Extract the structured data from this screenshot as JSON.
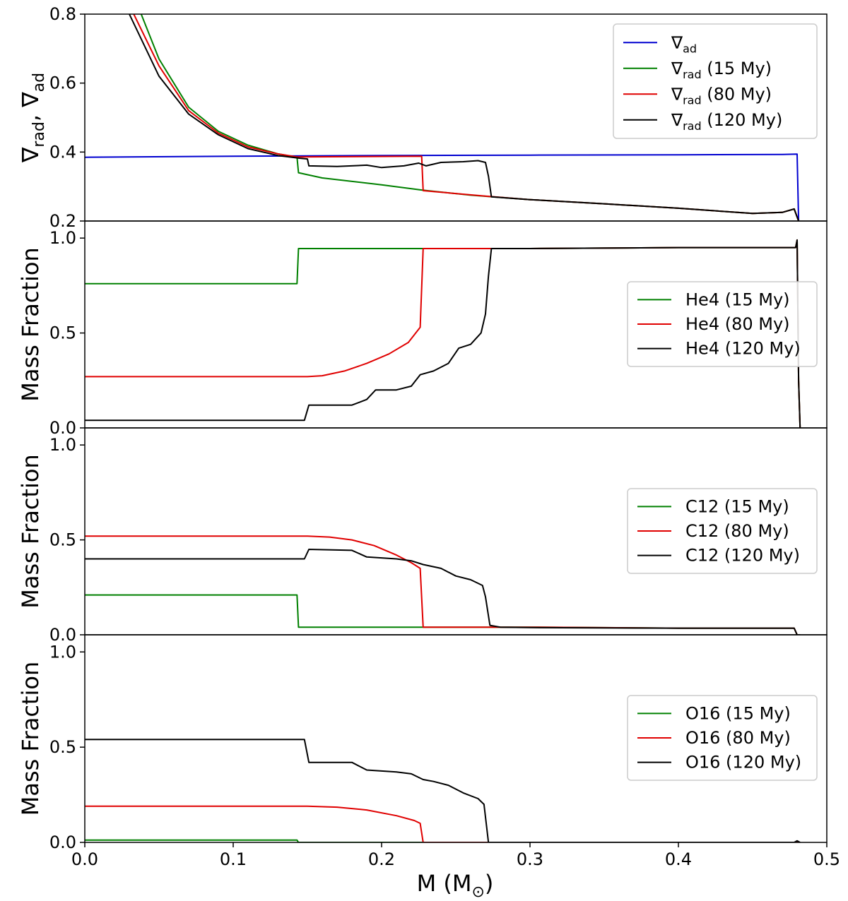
{
  "figure": {
    "xlabel": "M (M",
    "xlabel_sub": "⊙",
    "xlabel_close": ")"
  },
  "colors": {
    "green": "#008000",
    "red": "#e00000",
    "black": "#000000",
    "blue": "#0000d0"
  },
  "chart_data": [
    {
      "type": "line",
      "id": "gradients",
      "ylabel_parts": [
        "∇",
        "rad",
        ", ∇",
        "ad"
      ],
      "xlim": [
        0.0,
        0.5
      ],
      "ylim": [
        0.2,
        0.8
      ],
      "yticks": [
        "0.2",
        "0.4",
        "0.6",
        "0.8"
      ],
      "ytick_values": [
        0.2,
        0.4,
        0.6,
        0.8
      ],
      "legend_position": "top-right",
      "series": [
        {
          "name": "∇ad",
          "label_main": "∇",
          "label_sub": "ad",
          "label_rest": "",
          "color": "blue",
          "points": [
            [
              0,
              0.385
            ],
            [
              0.1,
              0.388
            ],
            [
              0.2,
              0.39
            ],
            [
              0.3,
              0.391
            ],
            [
              0.4,
              0.392
            ],
            [
              0.47,
              0.393
            ],
            [
              0.48,
              0.394
            ],
            [
              0.481,
              0.2
            ]
          ]
        },
        {
          "name": "∇rad (15 My)",
          "label_main": "∇",
          "label_sub": "rad",
          "label_rest": " (15 My)",
          "color": "green",
          "points": [
            [
              0.038,
              0.8
            ],
            [
              0.05,
              0.67
            ],
            [
              0.07,
              0.53
            ],
            [
              0.09,
              0.46
            ],
            [
              0.11,
              0.42
            ],
            [
              0.13,
              0.395
            ],
            [
              0.143,
              0.385
            ],
            [
              0.144,
              0.34
            ],
            [
              0.16,
              0.325
            ],
            [
              0.2,
              0.305
            ],
            [
              0.227,
              0.29
            ],
            [
              0.26,
              0.275
            ],
            [
              0.3,
              0.262
            ],
            [
              0.35,
              0.25
            ],
            [
              0.4,
              0.237
            ],
            [
              0.45,
              0.222
            ],
            [
              0.47,
              0.225
            ],
            [
              0.478,
              0.235
            ],
            [
              0.481,
              0.2
            ]
          ]
        },
        {
          "name": "∇rad (80 My)",
          "label_main": "∇",
          "label_sub": "rad",
          "label_rest": " (80 My)",
          "color": "red",
          "points": [
            [
              0.033,
              0.8
            ],
            [
              0.05,
              0.65
            ],
            [
              0.07,
              0.52
            ],
            [
              0.09,
              0.455
            ],
            [
              0.11,
              0.415
            ],
            [
              0.13,
              0.395
            ],
            [
              0.143,
              0.386
            ],
            [
              0.227,
              0.388
            ],
            [
              0.228,
              0.288
            ],
            [
              0.27,
              0.272
            ],
            [
              0.3,
              0.262
            ],
            [
              0.35,
              0.25
            ],
            [
              0.4,
              0.237
            ],
            [
              0.45,
              0.222
            ],
            [
              0.47,
              0.225
            ],
            [
              0.478,
              0.235
            ],
            [
              0.481,
              0.2
            ]
          ]
        },
        {
          "name": "∇rad (120 My)",
          "label_main": "∇",
          "label_sub": "rad",
          "label_rest": " (120 My)",
          "color": "black",
          "points": [
            [
              0.03,
              0.8
            ],
            [
              0.05,
              0.62
            ],
            [
              0.07,
              0.51
            ],
            [
              0.09,
              0.45
            ],
            [
              0.11,
              0.41
            ],
            [
              0.13,
              0.39
            ],
            [
              0.145,
              0.382
            ],
            [
              0.15,
              0.38
            ],
            [
              0.151,
              0.36
            ],
            [
              0.17,
              0.358
            ],
            [
              0.19,
              0.362
            ],
            [
              0.2,
              0.355
            ],
            [
              0.215,
              0.36
            ],
            [
              0.225,
              0.368
            ],
            [
              0.23,
              0.36
            ],
            [
              0.24,
              0.37
            ],
            [
              0.255,
              0.372
            ],
            [
              0.265,
              0.375
            ],
            [
              0.27,
              0.37
            ],
            [
              0.272,
              0.33
            ],
            [
              0.274,
              0.27
            ],
            [
              0.3,
              0.262
            ],
            [
              0.35,
              0.25
            ],
            [
              0.4,
              0.237
            ],
            [
              0.45,
              0.222
            ],
            [
              0.47,
              0.225
            ],
            [
              0.478,
              0.235
            ],
            [
              0.481,
              0.2
            ]
          ]
        }
      ]
    },
    {
      "type": "line",
      "id": "he4",
      "ylabel": "Mass Fraction",
      "xlim": [
        0.0,
        0.5
      ],
      "ylim": [
        0.0,
        1.09
      ],
      "yticks": [
        "0.0",
        "0.5",
        "1.0"
      ],
      "ytick_values": [
        0.0,
        0.5,
        1.0
      ],
      "legend_position": "center-right",
      "series": [
        {
          "name": "He4 (15 My)",
          "color": "green",
          "points": [
            [
              0,
              0.76
            ],
            [
              0.143,
              0.76
            ],
            [
              0.144,
              0.945
            ],
            [
              0.2,
              0.945
            ],
            [
              0.3,
              0.945
            ],
            [
              0.4,
              0.95
            ],
            [
              0.47,
              0.95
            ],
            [
              0.479,
              0.95
            ],
            [
              0.48,
              0.99
            ],
            [
              0.481,
              0.25
            ],
            [
              0.482,
              0.0
            ]
          ]
        },
        {
          "name": "He4 (80 My)",
          "color": "red",
          "points": [
            [
              0,
              0.27
            ],
            [
              0.15,
              0.27
            ],
            [
              0.16,
              0.275
            ],
            [
              0.175,
              0.3
            ],
            [
              0.19,
              0.34
            ],
            [
              0.205,
              0.39
            ],
            [
              0.218,
              0.45
            ],
            [
              0.226,
              0.53
            ],
            [
              0.228,
              0.945
            ],
            [
              0.3,
              0.945
            ],
            [
              0.4,
              0.95
            ],
            [
              0.47,
              0.95
            ],
            [
              0.479,
              0.95
            ],
            [
              0.48,
              0.99
            ],
            [
              0.481,
              0.25
            ],
            [
              0.482,
              0.0
            ]
          ]
        },
        {
          "name": "He4 (120 My)",
          "color": "black",
          "points": [
            [
              0,
              0.04
            ],
            [
              0.148,
              0.04
            ],
            [
              0.151,
              0.12
            ],
            [
              0.18,
              0.12
            ],
            [
              0.19,
              0.15
            ],
            [
              0.196,
              0.2
            ],
            [
              0.21,
              0.2
            ],
            [
              0.22,
              0.22
            ],
            [
              0.226,
              0.28
            ],
            [
              0.235,
              0.3
            ],
            [
              0.245,
              0.34
            ],
            [
              0.252,
              0.42
            ],
            [
              0.26,
              0.44
            ],
            [
              0.267,
              0.5
            ],
            [
              0.27,
              0.6
            ],
            [
              0.272,
              0.8
            ],
            [
              0.274,
              0.945
            ],
            [
              0.3,
              0.945
            ],
            [
              0.4,
              0.95
            ],
            [
              0.47,
              0.95
            ],
            [
              0.479,
              0.95
            ],
            [
              0.48,
              0.99
            ],
            [
              0.481,
              0.25
            ],
            [
              0.482,
              0.0
            ]
          ]
        }
      ]
    },
    {
      "type": "line",
      "id": "c12",
      "ylabel": "Mass Fraction",
      "xlim": [
        0.0,
        0.5
      ],
      "ylim": [
        0.0,
        1.09
      ],
      "yticks": [
        "0.0",
        "0.5",
        "1.0"
      ],
      "ytick_values": [
        0.0,
        0.5,
        1.0
      ],
      "legend_position": "center-right",
      "series": [
        {
          "name": "C12 (15 My)",
          "color": "green",
          "points": [
            [
              0,
              0.21
            ],
            [
              0.143,
              0.21
            ],
            [
              0.144,
              0.04
            ],
            [
              0.2,
              0.04
            ],
            [
              0.3,
              0.04
            ],
            [
              0.4,
              0.035
            ],
            [
              0.478,
              0.035
            ],
            [
              0.48,
              0.0
            ],
            [
              0.482,
              0.0
            ]
          ]
        },
        {
          "name": "C12 (80 My)",
          "color": "red",
          "points": [
            [
              0,
              0.52
            ],
            [
              0.15,
              0.52
            ],
            [
              0.165,
              0.515
            ],
            [
              0.18,
              0.5
            ],
            [
              0.195,
              0.47
            ],
            [
              0.21,
              0.42
            ],
            [
              0.22,
              0.38
            ],
            [
              0.226,
              0.35
            ],
            [
              0.228,
              0.04
            ],
            [
              0.3,
              0.04
            ],
            [
              0.4,
              0.035
            ],
            [
              0.478,
              0.035
            ],
            [
              0.48,
              0.0
            ],
            [
              0.482,
              0.0
            ]
          ]
        },
        {
          "name": "C12 (120 My)",
          "color": "black",
          "points": [
            [
              0,
              0.4
            ],
            [
              0.148,
              0.4
            ],
            [
              0.151,
              0.45
            ],
            [
              0.18,
              0.445
            ],
            [
              0.19,
              0.41
            ],
            [
              0.21,
              0.4
            ],
            [
              0.22,
              0.39
            ],
            [
              0.228,
              0.37
            ],
            [
              0.24,
              0.35
            ],
            [
              0.25,
              0.31
            ],
            [
              0.26,
              0.29
            ],
            [
              0.268,
              0.26
            ],
            [
              0.27,
              0.2
            ],
            [
              0.273,
              0.05
            ],
            [
              0.28,
              0.04
            ],
            [
              0.3,
              0.038
            ],
            [
              0.4,
              0.035
            ],
            [
              0.478,
              0.035
            ],
            [
              0.48,
              0.0
            ],
            [
              0.482,
              0.0
            ]
          ]
        }
      ]
    },
    {
      "type": "line",
      "id": "o16",
      "ylabel": "Mass Fraction",
      "xlim": [
        0.0,
        0.5
      ],
      "ylim": [
        0.0,
        1.09
      ],
      "yticks": [
        "0.0",
        "0.5",
        "1.0"
      ],
      "ytick_values": [
        0.0,
        0.5,
        1.0
      ],
      "legend_position": "center-right",
      "series": [
        {
          "name": "O16 (15 My)",
          "color": "green",
          "points": [
            [
              0,
              0.012
            ],
            [
              0.143,
              0.012
            ],
            [
              0.144,
              0.0
            ],
            [
              0.482,
              0.0
            ]
          ]
        },
        {
          "name": "O16 (80 My)",
          "color": "red",
          "points": [
            [
              0,
              0.19
            ],
            [
              0.15,
              0.19
            ],
            [
              0.17,
              0.185
            ],
            [
              0.19,
              0.17
            ],
            [
              0.21,
              0.14
            ],
            [
              0.222,
              0.115
            ],
            [
              0.226,
              0.1
            ],
            [
              0.228,
              0.0
            ],
            [
              0.482,
              0.0
            ]
          ]
        },
        {
          "name": "O16 (120 My)",
          "color": "black",
          "points": [
            [
              0,
              0.54
            ],
            [
              0.148,
              0.54
            ],
            [
              0.151,
              0.42
            ],
            [
              0.18,
              0.42
            ],
            [
              0.19,
              0.38
            ],
            [
              0.21,
              0.37
            ],
            [
              0.22,
              0.36
            ],
            [
              0.228,
              0.33
            ],
            [
              0.235,
              0.32
            ],
            [
              0.245,
              0.3
            ],
            [
              0.255,
              0.26
            ],
            [
              0.265,
              0.23
            ],
            [
              0.269,
              0.2
            ],
            [
              0.272,
              0.0
            ],
            [
              0.478,
              0.0
            ],
            [
              0.48,
              0.008
            ],
            [
              0.482,
              0.0
            ]
          ]
        }
      ]
    }
  ],
  "xticks": [
    "0.0",
    "0.1",
    "0.2",
    "0.3",
    "0.4",
    "0.5"
  ],
  "xtick_values": [
    0.0,
    0.1,
    0.2,
    0.3,
    0.4,
    0.5
  ]
}
